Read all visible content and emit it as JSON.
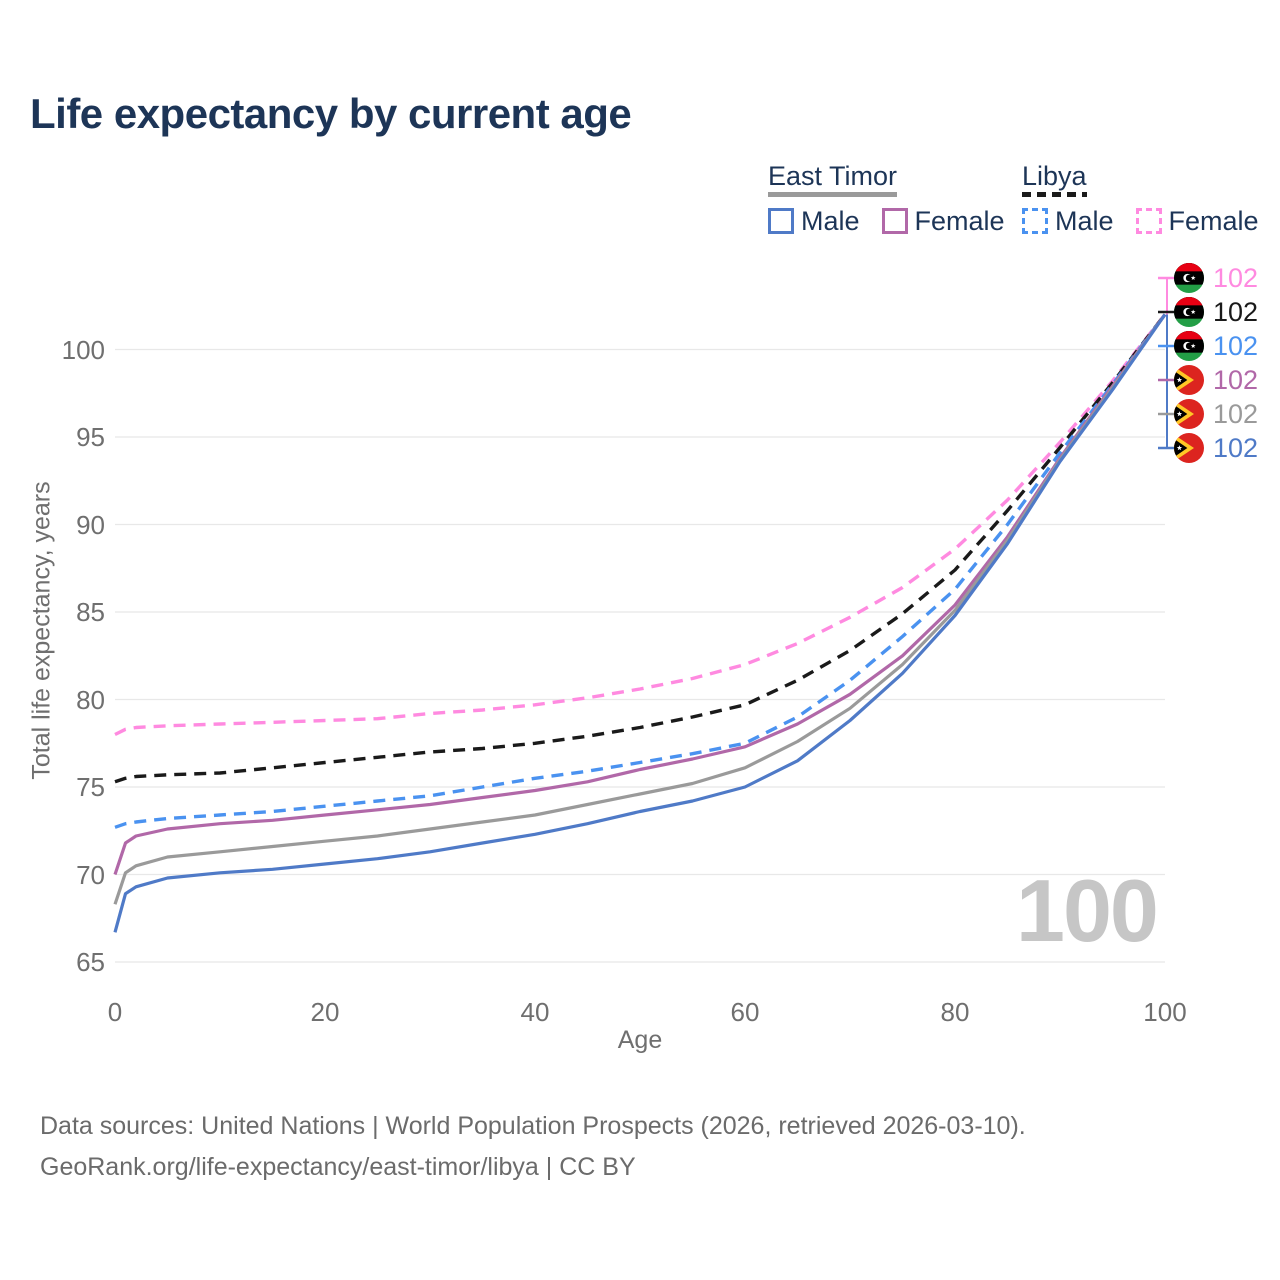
{
  "title": "Life expectancy by current age",
  "legend": {
    "groups": [
      {
        "label": "East Timor",
        "line_style": "solid",
        "line_color": "#9a9a9a",
        "items": [
          {
            "label": "Male",
            "color": "#4f7ac7",
            "dashed": false
          },
          {
            "label": "Female",
            "color": "#b168a8",
            "dashed": false
          }
        ]
      },
      {
        "label": "Libya",
        "line_style": "dashed",
        "line_color": "#1a1a1a",
        "items": [
          {
            "label": "Male",
            "color": "#4a92f0",
            "dashed": true
          },
          {
            "label": "Female",
            "color": "#ff8ae0",
            "dashed": true
          }
        ]
      }
    ]
  },
  "y_axis": {
    "title": "Total life expectancy, years",
    "ticks": [
      65,
      70,
      75,
      80,
      85,
      90,
      95,
      100
    ]
  },
  "x_axis": {
    "title": "Age",
    "ticks": [
      0,
      20,
      40,
      60,
      80,
      100
    ]
  },
  "age_indicator": "100",
  "end_labels": [
    {
      "value": "102",
      "country": "Libya",
      "flag": "libya",
      "color": "#ff8ae0"
    },
    {
      "value": "102",
      "country": "Libya",
      "flag": "libya",
      "color": "#1a1a1a"
    },
    {
      "value": "102",
      "country": "Libya",
      "flag": "libya",
      "color": "#4a92f0"
    },
    {
      "value": "102",
      "country": "East Timor",
      "flag": "east-timor",
      "color": "#b168a8"
    },
    {
      "value": "102",
      "country": "East Timor",
      "flag": "east-timor",
      "color": "#9a9a9a"
    },
    {
      "value": "102",
      "country": "East Timor",
      "flag": "east-timor",
      "color": "#4f7ac7"
    }
  ],
  "footer": {
    "line1": "Data sources: United Nations | World Population Prospects (2026, retrieved 2026-03-10).",
    "line2": "GeoRank.org/life-expectancy/east-timor/libya | CC BY"
  },
  "chart_data": {
    "type": "line",
    "title": "Life expectancy by current age",
    "xlabel": "Age",
    "ylabel": "Total life expectancy, years",
    "xlim": [
      0,
      100
    ],
    "ylim": [
      65,
      102.5
    ],
    "grid": "horizontal",
    "legend_position": "top-right",
    "x": [
      0,
      1,
      2,
      5,
      10,
      15,
      20,
      25,
      30,
      35,
      40,
      45,
      50,
      55,
      60,
      65,
      70,
      75,
      80,
      85,
      90,
      95,
      100
    ],
    "series": [
      {
        "name": "Libya Female",
        "color": "#ff8ae0",
        "dash": "dashed",
        "values": [
          78,
          78.3,
          78.4,
          78.5,
          78.6,
          78.7,
          78.8,
          78.9,
          79.2,
          79.4,
          79.7,
          80.1,
          80.6,
          81.2,
          82,
          83.2,
          84.7,
          86.4,
          88.6,
          91.4,
          94.7,
          98.2,
          102
        ]
      },
      {
        "name": "Libya Both sexes",
        "color": "#1a1a1a",
        "dash": "dashed",
        "values": [
          75.3,
          75.5,
          75.6,
          75.7,
          75.8,
          76.1,
          76.4,
          76.7,
          77,
          77.2,
          77.5,
          77.9,
          78.4,
          79,
          79.7,
          81.1,
          82.8,
          84.9,
          87.4,
          90.8,
          94.4,
          98.1,
          102
        ]
      },
      {
        "name": "Libya Male",
        "color": "#4a92f0",
        "dash": "dashed",
        "values": [
          72.7,
          72.9,
          73,
          73.2,
          73.4,
          73.6,
          73.9,
          74.2,
          74.5,
          75,
          75.5,
          75.9,
          76.4,
          76.9,
          77.5,
          79,
          81.1,
          83.6,
          86.3,
          90,
          94.1,
          98,
          102
        ]
      },
      {
        "name": "East Timor Female",
        "color": "#b168a8",
        "dash": "solid",
        "values": [
          70,
          71.8,
          72.2,
          72.6,
          72.9,
          73.1,
          73.4,
          73.7,
          74,
          74.4,
          74.8,
          75.3,
          76,
          76.6,
          77.3,
          78.6,
          80.3,
          82.5,
          85.4,
          89.3,
          93.8,
          97.9,
          102
        ]
      },
      {
        "name": "East Timor Both sexes",
        "color": "#9a9a9a",
        "dash": "solid",
        "values": [
          68.3,
          70.1,
          70.5,
          71,
          71.3,
          71.6,
          71.9,
          72.2,
          72.6,
          73,
          73.4,
          74,
          74.6,
          75.2,
          76.1,
          77.6,
          79.5,
          82,
          85.1,
          89.1,
          93.7,
          97.8,
          102
        ]
      },
      {
        "name": "East Timor Male",
        "color": "#4f7ac7",
        "dash": "solid",
        "values": [
          66.7,
          68.9,
          69.3,
          69.8,
          70.1,
          70.3,
          70.6,
          70.9,
          71.3,
          71.8,
          72.3,
          72.9,
          73.6,
          74.2,
          75,
          76.5,
          78.8,
          81.5,
          84.8,
          88.9,
          93.6,
          97.7,
          102
        ]
      }
    ],
    "end_value_label": "102"
  }
}
